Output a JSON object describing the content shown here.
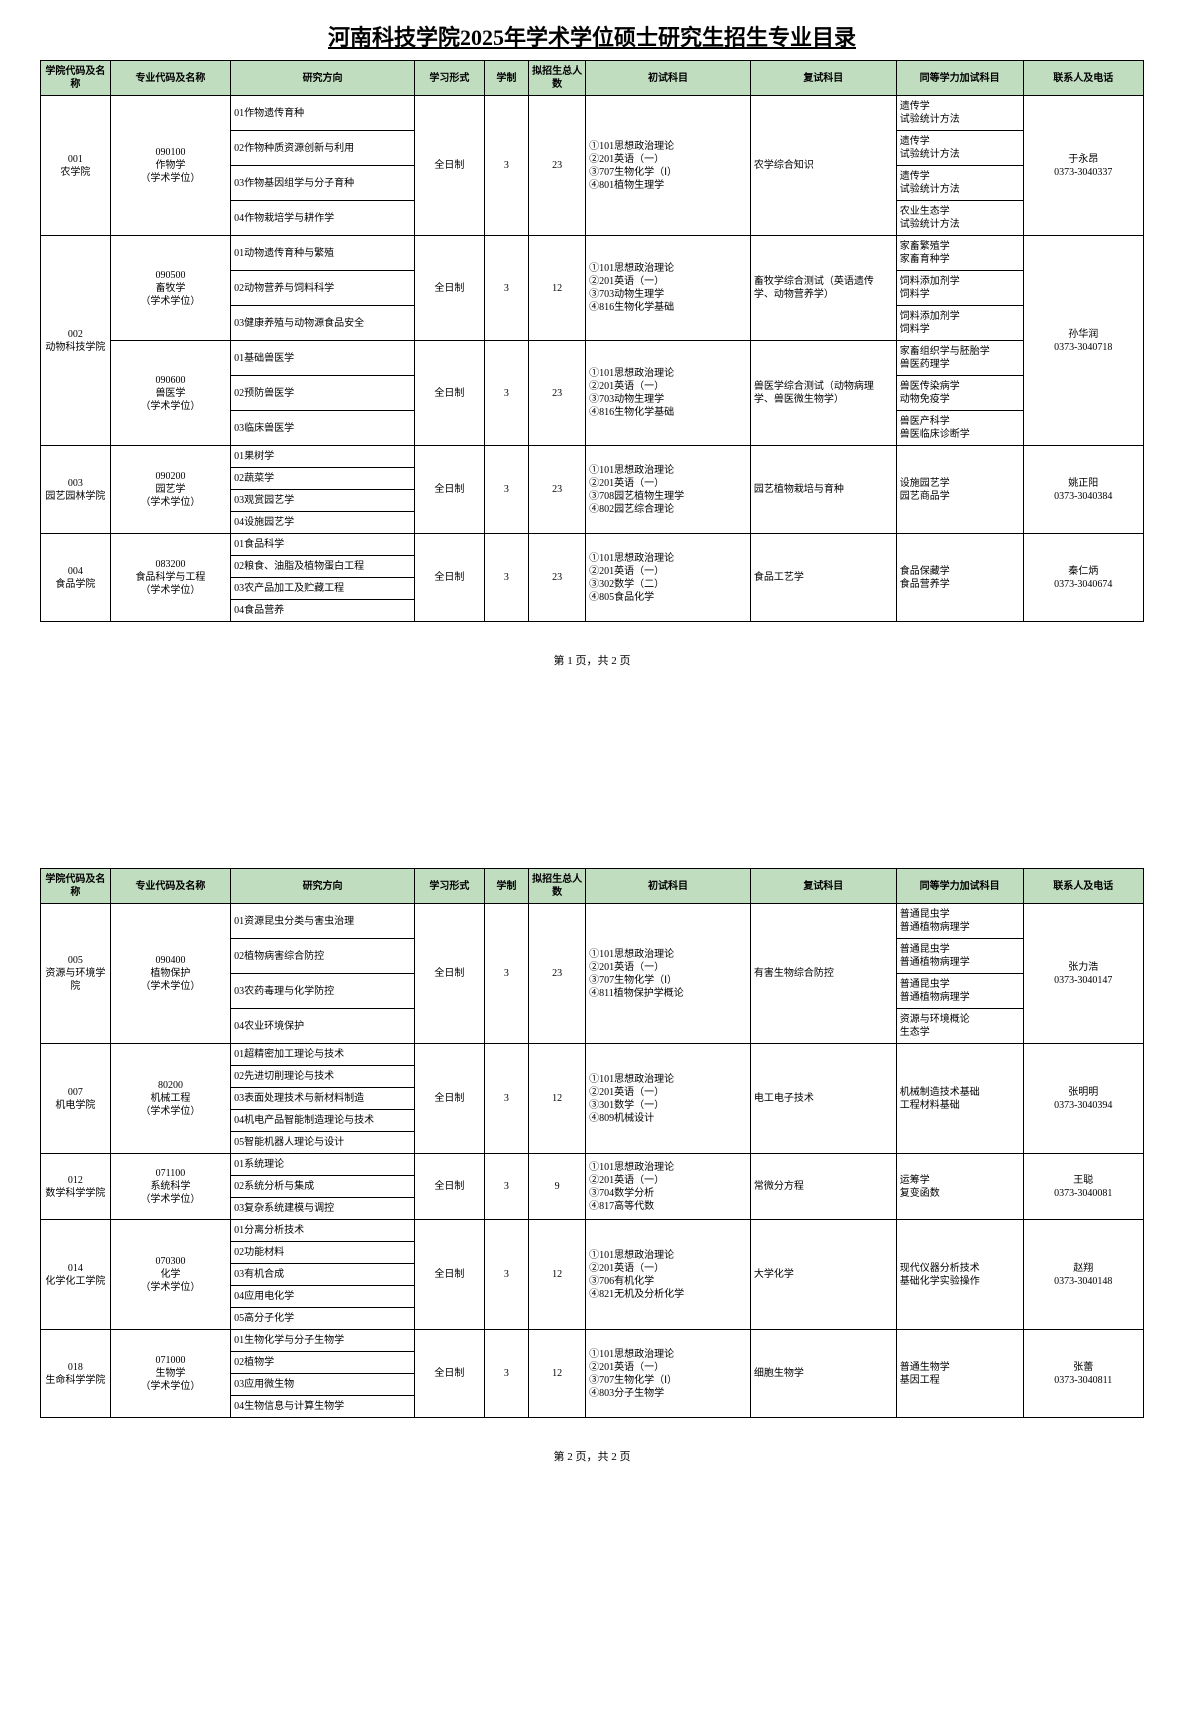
{
  "title": "河南科技学院2025年学术学位硕士研究生招生专业目录",
  "headers": {
    "college": "学院代码及名称",
    "major": "专业代码及名称",
    "direction": "研究方向",
    "study": "学习形式",
    "year": "学制",
    "enroll": "拟招生总人数",
    "exam1": "初试科目",
    "exam2": "复试科目",
    "equiv": "同等学力加试科目",
    "contact": "联系人及电话"
  },
  "page1num": "第 1 页，共 2 页",
  "page2num": "第 2 页，共 2 页",
  "c001": {
    "college": "001\n农学院",
    "major": "090100\n作物学\n（学术学位）",
    "d1": "01作物遗传育种",
    "d2": "02作物种质资源创新与利用",
    "d3": "03作物基因组学与分子育种",
    "d4": "04作物栽培学与耕作学",
    "study": "全日制",
    "year": "3",
    "enroll": "23",
    "exam1": "①101思想政治理论\n②201英语（一）\n③707生物化学（Ⅰ）\n④801植物生理学",
    "exam2": "农学综合知识",
    "e1": "遗传学\n试验统计方法",
    "e2": "遗传学\n试验统计方法",
    "e3": "遗传学\n试验统计方法",
    "e4": "农业生态学\n试验统计方法",
    "contact": "于永昂\n0373-3040337"
  },
  "c002a": {
    "college": "002\n动物科技学院",
    "major": "090500\n畜牧学\n（学术学位）",
    "d1": "01动物遗传育种与繁殖",
    "d2": "02动物营养与饲料科学",
    "d3": "03健康养殖与动物源食品安全",
    "study": "全日制",
    "year": "3",
    "enroll": "12",
    "exam1": "①101思想政治理论\n②201英语（一）\n③703动物生理学\n④816生物化学基础",
    "exam2": "畜牧学综合测试（英语遗传学、动物营养学）",
    "e1": "家畜繁殖学\n家畜育种学",
    "e2": "饲料添加剂学\n饲料学",
    "e3": "饲料添加剂学\n饲料学",
    "contact": "孙华润\n0373-3040718"
  },
  "c002b": {
    "major": "090600\n兽医学\n（学术学位）",
    "d1": "01基础兽医学",
    "d2": "02预防兽医学",
    "d3": "03临床兽医学",
    "study": "全日制",
    "year": "3",
    "enroll": "23",
    "exam1": "①101思想政治理论\n②201英语（一）\n③703动物生理学\n④816生物化学基础",
    "exam2": "兽医学综合测试（动物病理学、兽医微生物学）",
    "e1": "家畜组织学与胚胎学\n兽医药理学",
    "e2": "兽医传染病学\n动物免疫学",
    "e3": "兽医产科学\n兽医临床诊断学"
  },
  "c003": {
    "college": "003\n园艺园林学院",
    "major": "090200\n园艺学\n（学术学位）",
    "d1": "01果树学",
    "d2": "02蔬菜学",
    "d3": "03观赏园艺学",
    "d4": "04设施园艺学",
    "study": "全日制",
    "year": "3",
    "enroll": "23",
    "exam1": "①101思想政治理论\n②201英语（一）\n③708园艺植物生理学\n④802园艺综合理论",
    "exam2": "园艺植物栽培与育种",
    "equiv": "设施园艺学\n园艺商品学",
    "contact": "姚正阳\n0373-3040384"
  },
  "c004": {
    "college": "004\n食品学院",
    "major": "083200\n食品科学与工程\n（学术学位）",
    "d1": "01食品科学",
    "d2": "02粮食、油脂及植物蛋白工程",
    "d3": "03农产品加工及贮藏工程",
    "d4": "04食品营养",
    "study": "全日制",
    "year": "3",
    "enroll": "23",
    "exam1": "①101思想政治理论\n②201英语（一）\n③302数学（二）\n④805食品化学",
    "exam2": "食品工艺学",
    "equiv": "食品保藏学\n食品营养学",
    "contact": "秦仁炳\n0373-3040674"
  },
  "c005": {
    "college": "005\n资源与环境学院",
    "major": "090400\n植物保护\n（学术学位）",
    "d1": "01资源昆虫分类与害虫治理",
    "d2": "02植物病害综合防控",
    "d3": "03农药毒理与化学防控",
    "d4": "04农业环境保护",
    "study": "全日制",
    "year": "3",
    "enroll": "23",
    "exam1": "①101思想政治理论\n②201英语（一）\n③707生物化学（Ⅰ）\n④811植物保护学概论",
    "exam2": "有害生物综合防控",
    "e1": "普通昆虫学\n普通植物病理学",
    "e2": "普通昆虫学\n普通植物病理学",
    "e3": "普通昆虫学\n普通植物病理学",
    "e4": "资源与环境概论\n生态学",
    "contact": "张力浩\n0373-3040147"
  },
  "c007": {
    "college": "007\n机电学院",
    "major": "80200\n机械工程\n（学术学位）",
    "d1": "01超精密加工理论与技术",
    "d2": "02先进切削理论与技术",
    "d3": "03表面处理技术与新材料制造",
    "d4": "04机电产品智能制造理论与技术",
    "d5": "05智能机器人理论与设计",
    "study": "全日制",
    "year": "3",
    "enroll": "12",
    "exam1": "①101思想政治理论\n②201英语（一）\n③301数学（一）\n④809机械设计",
    "exam2": "电工电子技术",
    "equiv": "机械制造技术基础\n工程材料基础",
    "contact": "张明明\n0373-3040394"
  },
  "c012": {
    "college": "012\n数学科学学院",
    "major": "071100\n系统科学\n（学术学位）",
    "d1": "01系统理论",
    "d2": "02系统分析与集成",
    "d3": "03复杂系统建模与调控",
    "study": "全日制",
    "year": "3",
    "enroll": "9",
    "exam1": "①101思想政治理论\n②201英语（一）\n③704数学分析\n④817高等代数",
    "exam2": "常微分方程",
    "equiv": "运筹学\n复变函数",
    "contact": "王聪\n0373-3040081"
  },
  "c014": {
    "college": "014\n化学化工学院",
    "major": "070300\n化学\n（学术学位）",
    "d1": "01分离分析技术",
    "d2": "02功能材料",
    "d3": "03有机合成",
    "d4": "04应用电化学",
    "d5": "05高分子化学",
    "study": "全日制",
    "year": "3",
    "enroll": "12",
    "exam1": "①101思想政治理论\n②201英语（一）\n③706有机化学\n④821无机及分析化学",
    "exam2": "大学化学",
    "equiv": "现代仪器分析技术\n基础化学实验操作",
    "contact": "赵翔\n0373-3040148"
  },
  "c018": {
    "college": "018\n生命科学学院",
    "major": "071000\n生物学\n（学术学位）",
    "d1": "01生物化学与分子生物学",
    "d2": "02植物学",
    "d3": "03应用微生物",
    "d4": "04生物信息与计算生物学",
    "study": "全日制",
    "year": "3",
    "enroll": "12",
    "exam1": "①101思想政治理论\n②201英语（一）\n③707生物化学（Ⅰ）\n④803分子生物学",
    "exam2": "细胞生物学",
    "equiv": "普通生物学\n基因工程",
    "contact": "张蕾\n0373-3040811"
  }
}
